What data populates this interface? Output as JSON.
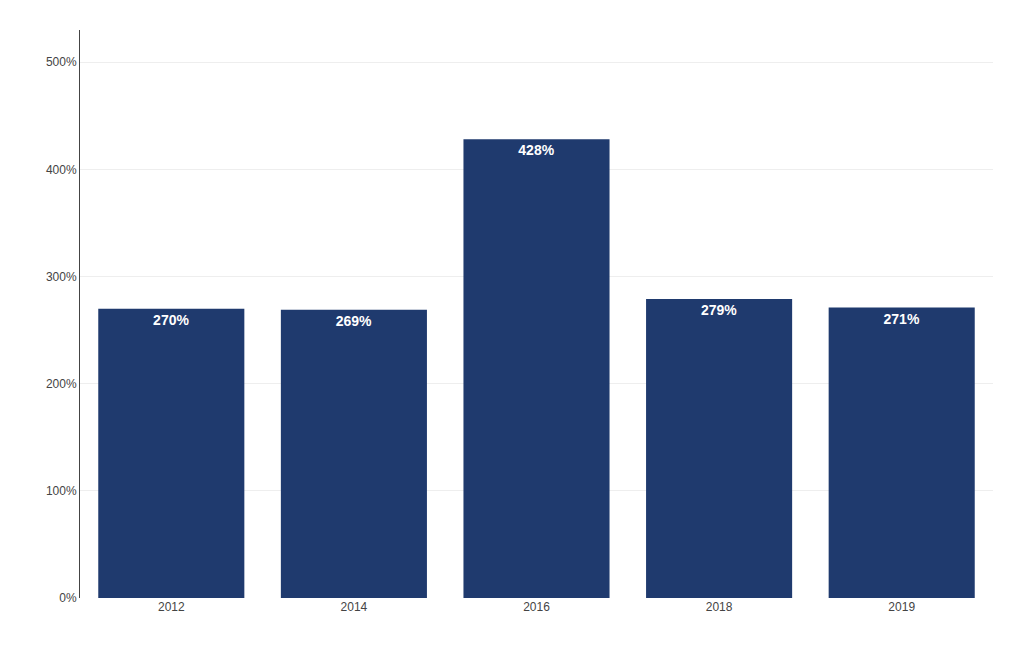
{
  "chart_data": {
    "type": "bar",
    "categories": [
      "2012",
      "2014",
      "2016",
      "2018",
      "2019"
    ],
    "values": [
      270,
      269,
      428,
      279,
      271
    ],
    "value_labels": [
      "270%",
      "269%",
      "428%",
      "279%",
      "271%"
    ],
    "data_labels": true,
    "color": "#1f3a6e",
    "ylim": [
      0,
      530
    ],
    "yticks": [
      {
        "value": 0,
        "label": "0%"
      },
      {
        "value": 100,
        "label": "100%"
      },
      {
        "value": 200,
        "label": "200%"
      },
      {
        "value": 300,
        "label": "300%"
      },
      {
        "value": 400,
        "label": "400%"
      },
      {
        "value": 500,
        "label": "500%"
      }
    ],
    "grid": true
  }
}
